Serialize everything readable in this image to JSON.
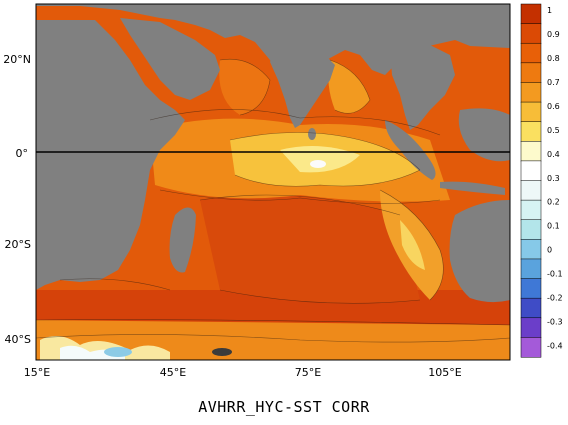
{
  "caption": "AVHRR_HYC-SST CORR",
  "map": {
    "lat_labels": [
      "20°N",
      "0°",
      "20°S",
      "40°S"
    ],
    "lon_labels": [
      "15°E",
      "45°E",
      "75°E",
      "105°E"
    ],
    "equator_line": true,
    "land_color": "#808080"
  },
  "colorbar": {
    "tick_labels": [
      "1",
      "0.9",
      "0.8",
      "0.7",
      "0.6",
      "0.5",
      "0.4",
      "0.3",
      "0.2",
      "0.1",
      "0",
      "-0.1",
      "-0.2",
      "-0.3",
      "-0.4"
    ],
    "colors": [
      "#c43000",
      "#db4a05",
      "#e86008",
      "#ee7a10",
      "#f39a20",
      "#f7bd38",
      "#fae060",
      "#fdfacc",
      "#ffffff",
      "#eef8f8",
      "#d6f3f3",
      "#b3e5ea",
      "#86c9e8",
      "#5aa3dd",
      "#3f78d6",
      "#3f4cc6",
      "#6b3ec9",
      "#a45ad9"
    ]
  }
}
